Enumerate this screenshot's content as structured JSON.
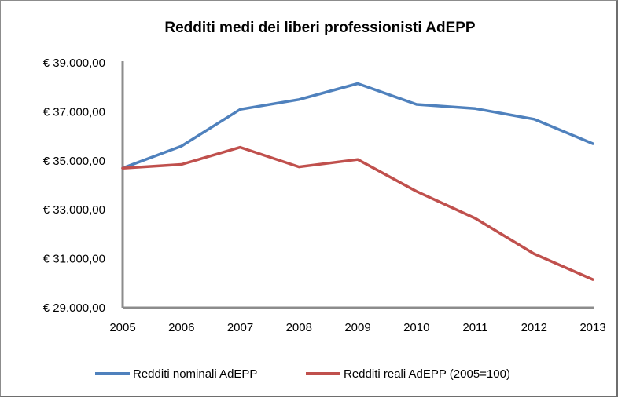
{
  "chart_data": {
    "type": "line",
    "title": "Redditi medi dei liberi professionisti AdEPP",
    "xlabel": "",
    "ylabel": "",
    "categories": [
      "2005",
      "2006",
      "2007",
      "2008",
      "2009",
      "2010",
      "2011",
      "2012",
      "2013"
    ],
    "ylim": [
      29000,
      39000
    ],
    "yticks": [
      29000,
      31000,
      33000,
      35000,
      37000,
      39000
    ],
    "ytick_labels": [
      "€ 29.000,00",
      "€ 31.000,00",
      "€ 33.000,00",
      "€ 35.000,00",
      "€ 37.000,00",
      "€ 39.000,00"
    ],
    "grid": false,
    "legend_position": "bottom",
    "series": [
      {
        "name": "Redditi nominali AdEPP",
        "color": "#4f81bd",
        "values": [
          34700,
          35600,
          37100,
          37500,
          38150,
          37300,
          37130,
          36700,
          35700
        ]
      },
      {
        "name": "Redditi reali AdEPP (2005=100)",
        "color": "#c0504d",
        "values": [
          34700,
          34850,
          35550,
          34750,
          35050,
          33750,
          32650,
          31200,
          30150
        ]
      }
    ]
  }
}
